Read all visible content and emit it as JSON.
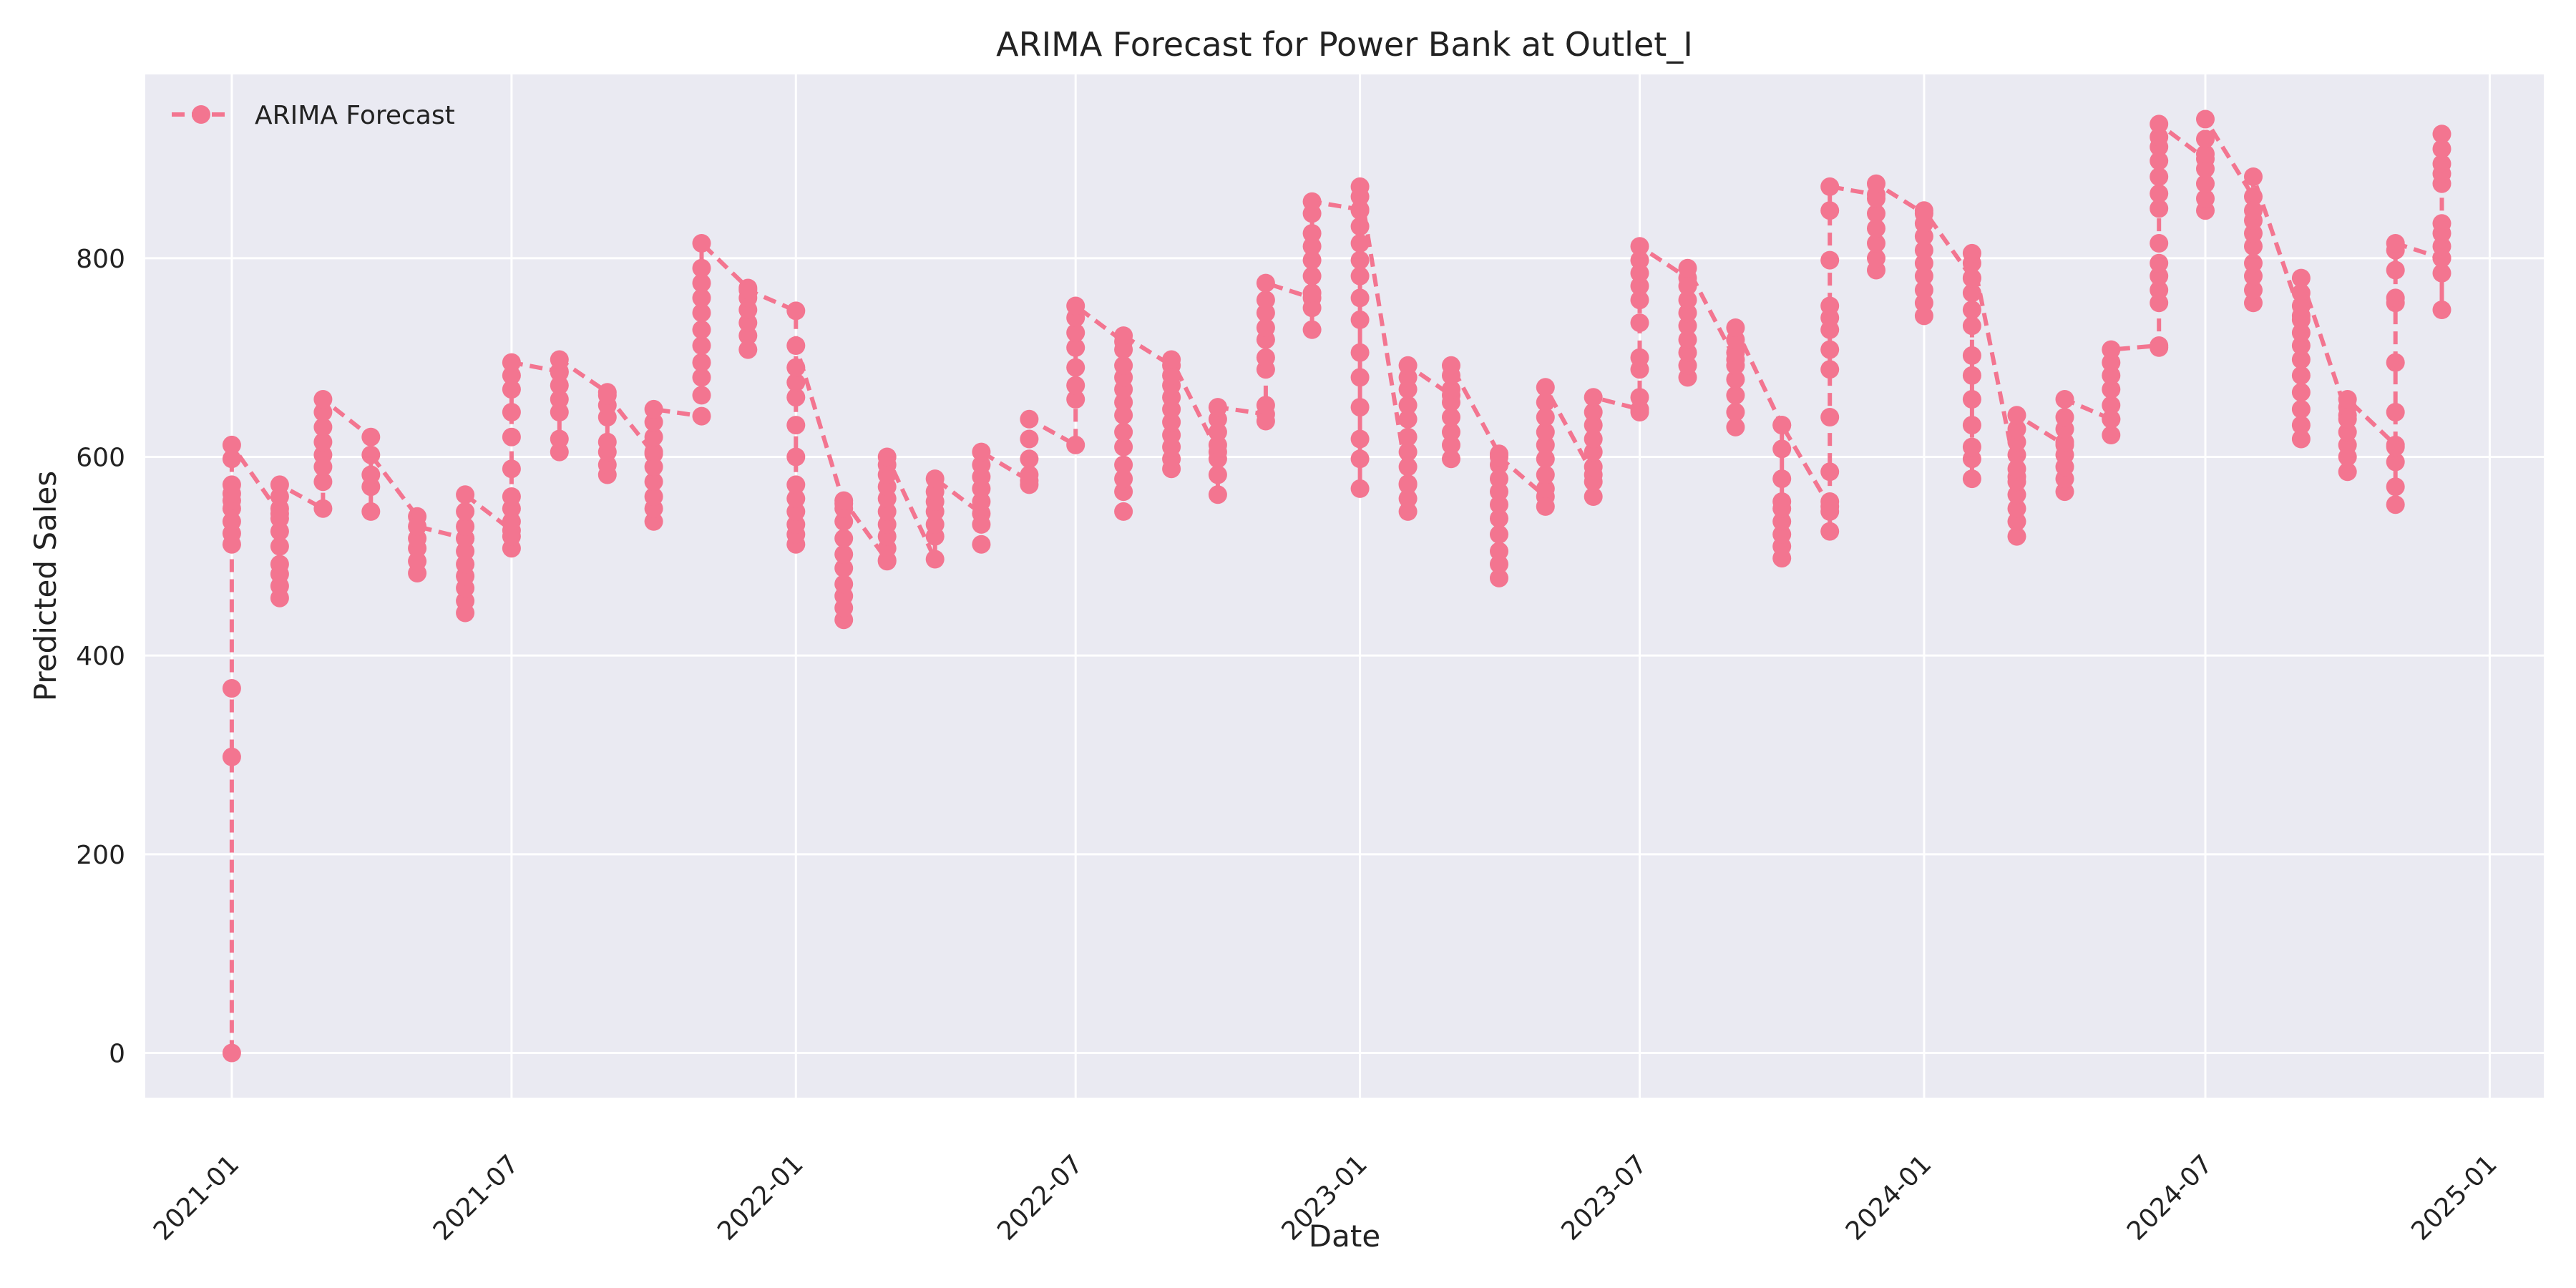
{
  "chart_data": {
    "type": "line",
    "title": "ARIMA Forecast for Power Bank at Outlet_I",
    "xlabel": "Date",
    "ylabel": "Predicted Sales",
    "ylim": [
      -45,
      985
    ],
    "xlim": [
      "2020-11-06",
      "2025-02-05"
    ],
    "yticks": [
      0,
      200,
      400,
      600,
      800
    ],
    "xticks": [
      "2021-01",
      "2021-07",
      "2022-01",
      "2022-07",
      "2023-01",
      "2023-07",
      "2024-01",
      "2024-07",
      "2025-01"
    ],
    "grid": true,
    "legend": {
      "position": "top-left",
      "entries": [
        "ARIMA Forecast"
      ]
    },
    "colors": {
      "series": "#f37590",
      "plot_bg": "#eaeaf2",
      "grid": "#ffffff",
      "text": "#222222"
    },
    "line_style": "dashed",
    "marker": "circle",
    "series": [
      {
        "name": "ARIMA Forecast",
        "monthly_groups": [
          {
            "date": "2021-01-01",
            "values": [
              0,
              298,
              367,
              512,
              523,
              535,
              548,
              556,
              563,
              572,
              598,
              612
            ]
          },
          {
            "date": "2021-02-01",
            "values": [
              543,
              458,
              470,
              482,
              492,
              510,
              525,
              538,
              548,
              560,
              572
            ]
          },
          {
            "date": "2021-03-01",
            "values": [
              548,
              575,
              590,
              602,
              615,
              630,
              645,
              658
            ]
          },
          {
            "date": "2021-04-01",
            "values": [
              620,
              545,
              570,
              582,
              602
            ]
          },
          {
            "date": "2021-05-01",
            "values": [
              540,
              483,
              495,
              508,
              518,
              530
            ]
          },
          {
            "date": "2021-06-01",
            "values": [
              518,
              443,
              455,
              468,
              480,
              492,
              505,
              518,
              530,
              545,
              562
            ]
          },
          {
            "date": "2021-07-01",
            "values": [
              526,
              508,
              520,
              535,
              548,
              560,
              588,
              620,
              645,
              668,
              682,
              695
            ]
          },
          {
            "date": "2021-08-01",
            "values": [
              686,
              605,
              618,
              645,
              658,
              672,
              685,
              698
            ]
          },
          {
            "date": "2021-09-01",
            "values": [
              665,
              582,
              592,
              605,
              615,
              640,
              652,
              662
            ]
          },
          {
            "date": "2021-10-01",
            "values": [
              603,
              535,
              548,
              560,
              575,
              590,
              605,
              620,
              635,
              648
            ]
          },
          {
            "date": "2021-11-01",
            "values": [
              641,
              662,
              680,
              695,
              712,
              728,
              745,
              760,
              775,
              790,
              815
            ]
          },
          {
            "date": "2021-12-01",
            "values": [
              770,
              708,
              722,
              735,
              748,
              760,
              768
            ]
          },
          {
            "date": "2022-01-01",
            "values": [
              747,
              512,
              522,
              532,
              545,
              558,
              572,
              600,
              632,
              660,
              675,
              690,
              712
            ]
          },
          {
            "date": "2022-02-01",
            "values": [
              553,
              436,
              448,
              460,
              472,
              488,
              502,
              518,
              535,
              548,
              556
            ]
          },
          {
            "date": "2022-03-01",
            "values": [
              496,
              495,
              508,
              520,
              532,
              545,
              558,
              570,
              582,
              592,
              600
            ]
          },
          {
            "date": "2022-04-01",
            "values": [
              497,
              520,
              532,
              545,
              555,
              565,
              578
            ]
          },
          {
            "date": "2022-05-01",
            "values": [
              543,
              512,
              532,
              555,
              568,
              580,
              592,
              605
            ]
          },
          {
            "date": "2022-06-01",
            "values": [
              576,
              572,
              582,
              598,
              618,
              638
            ]
          },
          {
            "date": "2022-07-01",
            "values": [
              612,
              658,
              672,
              690,
              710,
              725,
              740,
              752
            ]
          },
          {
            "date": "2022-08-01",
            "values": [
              716,
              545,
              565,
              578,
              592,
              610,
              625,
              642,
              655,
              668,
              680,
              692,
              708,
              722
            ]
          },
          {
            "date": "2022-09-01",
            "values": [
              692,
              588,
              598,
              610,
              622,
              635,
              648,
              660,
              672,
              682,
              698
            ]
          },
          {
            "date": "2022-10-01",
            "values": [
              605,
              562,
              582,
              598,
              612,
              625,
              638,
              650
            ]
          },
          {
            "date": "2022-11-01",
            "values": [
              643,
              636,
              652,
              688,
              700,
              718,
              730,
              745,
              758,
              775
            ]
          },
          {
            "date": "2022-12-01",
            "values": [
              760,
              728,
              750,
              765,
              782,
              798,
              812,
              825,
              845,
              857
            ]
          },
          {
            "date": "2023-01-01",
            "values": [
              849,
              568,
              598,
              618,
              650,
              680,
              705,
              738,
              760,
              782,
              798,
              815,
              832,
              848,
              862,
              872
            ]
          },
          {
            "date": "2023-02-01",
            "values": [
              573,
              545,
              558,
              572,
              590,
              605,
              620,
              638,
              652,
              668,
              680,
              692
            ]
          },
          {
            "date": "2023-03-01",
            "values": [
              662,
              598,
              612,
              625,
              640,
              655,
              668,
              682,
              692
            ]
          },
          {
            "date": "2023-04-01",
            "values": [
              603,
              478,
              492,
              505,
              522,
              538,
              552,
              565,
              578,
              592,
              600
            ]
          },
          {
            "date": "2023-05-01",
            "values": [
              560,
              550,
              568,
              582,
              598,
              612,
              625,
              640,
              655,
              670
            ]
          },
          {
            "date": "2023-06-01",
            "values": [
              582,
              560,
              575,
              590,
              605,
              618,
              632,
              645,
              660
            ]
          },
          {
            "date": "2023-07-01",
            "values": [
              648,
              645,
              660,
              688,
              700,
              735,
              758,
              772,
              785,
              798,
              812
            ]
          },
          {
            "date": "2023-08-01",
            "values": [
              780,
              680,
              692,
              705,
              718,
              732,
              745,
              758,
              772,
              790
            ]
          },
          {
            "date": "2023-09-01",
            "values": [
              698,
              630,
              645,
              662,
              678,
              692,
              705,
              718,
              730
            ]
          },
          {
            "date": "2023-10-01",
            "values": [
              632,
              498,
              510,
              522,
              535,
              548,
              555,
              578,
              608,
              632
            ]
          },
          {
            "date": "2023-11-01",
            "values": [
              550,
              525,
              545,
              555,
              585,
              640,
              688,
              708,
              728,
              740,
              752,
              798,
              848,
              872
            ]
          },
          {
            "date": "2023-12-01",
            "values": [
              864,
              788,
              800,
              815,
              830,
              845,
              860,
              875
            ]
          },
          {
            "date": "2024-01-01",
            "values": [
              845,
              742,
              755,
              768,
              782,
              795,
              808,
              822,
              835,
              848
            ]
          },
          {
            "date": "2024-02-01",
            "values": [
              780,
              578,
              598,
              610,
              632,
              658,
              682,
              702,
              732,
              748,
              765,
              780,
              795,
              805
            ]
          },
          {
            "date": "2024-03-01",
            "values": [
              580,
              520,
              535,
              548,
              562,
              575,
              588,
              602,
              615,
              628,
              642
            ]
          },
          {
            "date": "2024-04-01",
            "values": [
              612,
              565,
              578,
              590,
              602,
              615,
              628,
              640,
              658
            ]
          },
          {
            "date": "2024-05-01",
            "values": [
              638,
              622,
              638,
              652,
              668,
              682,
              695,
              708
            ]
          },
          {
            "date": "2024-06-01",
            "values": [
              712,
              710,
              755,
              768,
              782,
              795,
              815,
              850,
              865,
              882,
              898,
              912,
              922,
              935
            ]
          },
          {
            "date": "2024-07-01",
            "values": [
              900,
              848,
              860,
              875,
              890,
              905,
              920,
              940
            ]
          },
          {
            "date": "2024-08-01",
            "values": [
              862,
              755,
              768,
              782,
              795,
              812,
              825,
              838,
              848,
              882
            ]
          },
          {
            "date": "2024-09-01",
            "values": [
              742,
              618,
              632,
              648,
              665,
              682,
              698,
              712,
              725,
              738,
              752,
              765,
              780
            ]
          },
          {
            "date": "2024-10-01",
            "values": [
              642,
              585,
              600,
              612,
              625,
              638,
              650,
              658
            ]
          },
          {
            "date": "2024-11-01",
            "values": [
              612,
              552,
              570,
              595,
              610,
              645,
              695,
              755,
              760,
              788,
              808,
              815
            ]
          },
          {
            "date": "2024-12-01",
            "values": [
              800,
              748,
              785,
              800,
              812,
              825,
              835,
              875,
              885,
              895,
              910,
              925
            ]
          }
        ]
      }
    ]
  }
}
